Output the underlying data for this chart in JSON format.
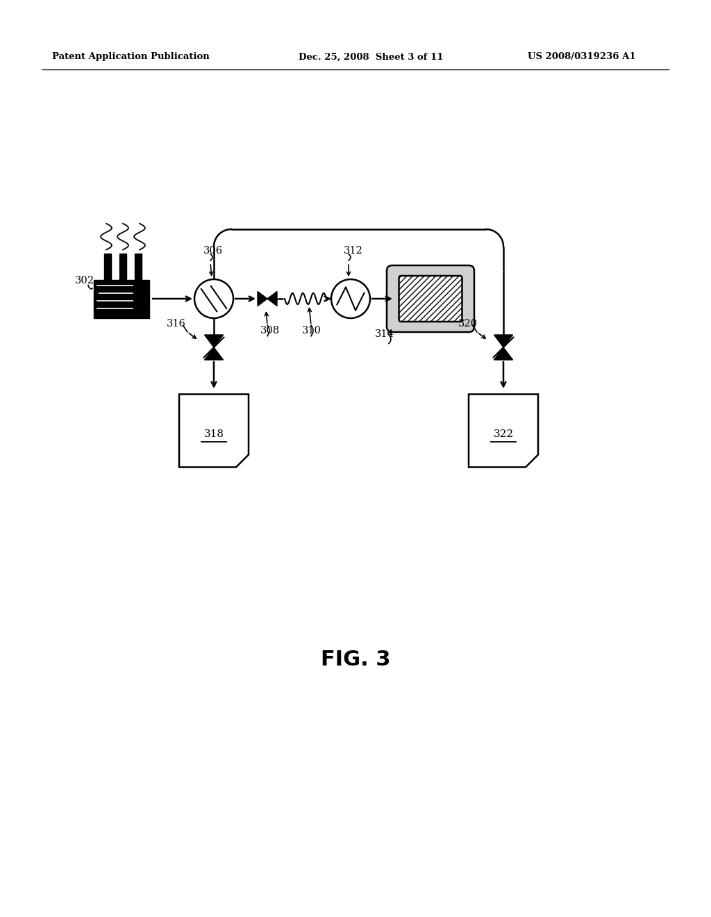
{
  "bg_color": "#ffffff",
  "line_color": "#000000",
  "header_left": "Patent Application Publication",
  "header_mid": "Dec. 25, 2008  Sheet 3 of 11",
  "header_right": "US 2008/0319236 A1",
  "fig_label": "FIG. 3"
}
